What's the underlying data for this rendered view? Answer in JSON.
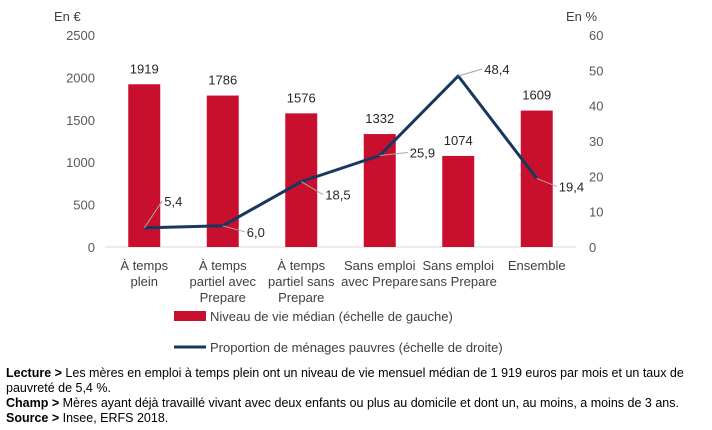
{
  "chart_data": {
    "type": "bar",
    "categories": [
      [
        "À temps",
        "plein"
      ],
      [
        "À temps",
        "partiel avec",
        "Prepare"
      ],
      [
        "À temps",
        "partiel sans",
        "Prepare"
      ],
      [
        "Sans emploi",
        "avec Prepare"
      ],
      [
        "Sans emploi",
        "sans Prepare"
      ],
      [
        "Ensemble"
      ]
    ],
    "left_unit": "En €",
    "right_unit": "En %",
    "left_axis": {
      "min": 0,
      "max": 2500,
      "ticks": [
        "0",
        "500",
        "1000",
        "1500",
        "2000",
        "2500"
      ]
    },
    "right_axis": {
      "min": 0,
      "max": 60,
      "ticks": [
        "0",
        "10",
        "20",
        "30",
        "40",
        "50",
        "60"
      ]
    },
    "grid": false,
    "series": [
      {
        "type": "bar",
        "axis": "left",
        "name": "Niveau de vie médian (échelle de gauche)",
        "color": "#c8102e",
        "values": [
          1919,
          1786,
          1576,
          1332,
          1074,
          1609
        ],
        "labels": [
          "1919",
          "1786",
          "1576",
          "1332",
          "1074",
          "1609"
        ]
      },
      {
        "type": "line",
        "axis": "right",
        "name": "Proportion de ménages pauvres (échelle de droite)",
        "color": "#17375e",
        "values": [
          5.4,
          6.0,
          18.5,
          25.9,
          48.4,
          19.4
        ],
        "labels": [
          "5,4",
          "6,0",
          "18,5",
          "25,9",
          "48,4",
          "19,4"
        ]
      }
    ],
    "legend_position": "bottom"
  },
  "notes": {
    "lecture_label": "Lecture >",
    "lecture_text": " Les mères en emploi à temps plein ont un niveau de vie mensuel médian de 1 919 euros par mois et un taux de pauvreté de 5,4 %.",
    "champ_label": "Champ >",
    "champ_text": " Mères ayant déjà travaillé vivant avec deux enfants ou plus au domicile et dont un, au moins, a moins de 3 ans.",
    "source_label": "Source >",
    "source_text": " Insee, ERFS 2018."
  }
}
